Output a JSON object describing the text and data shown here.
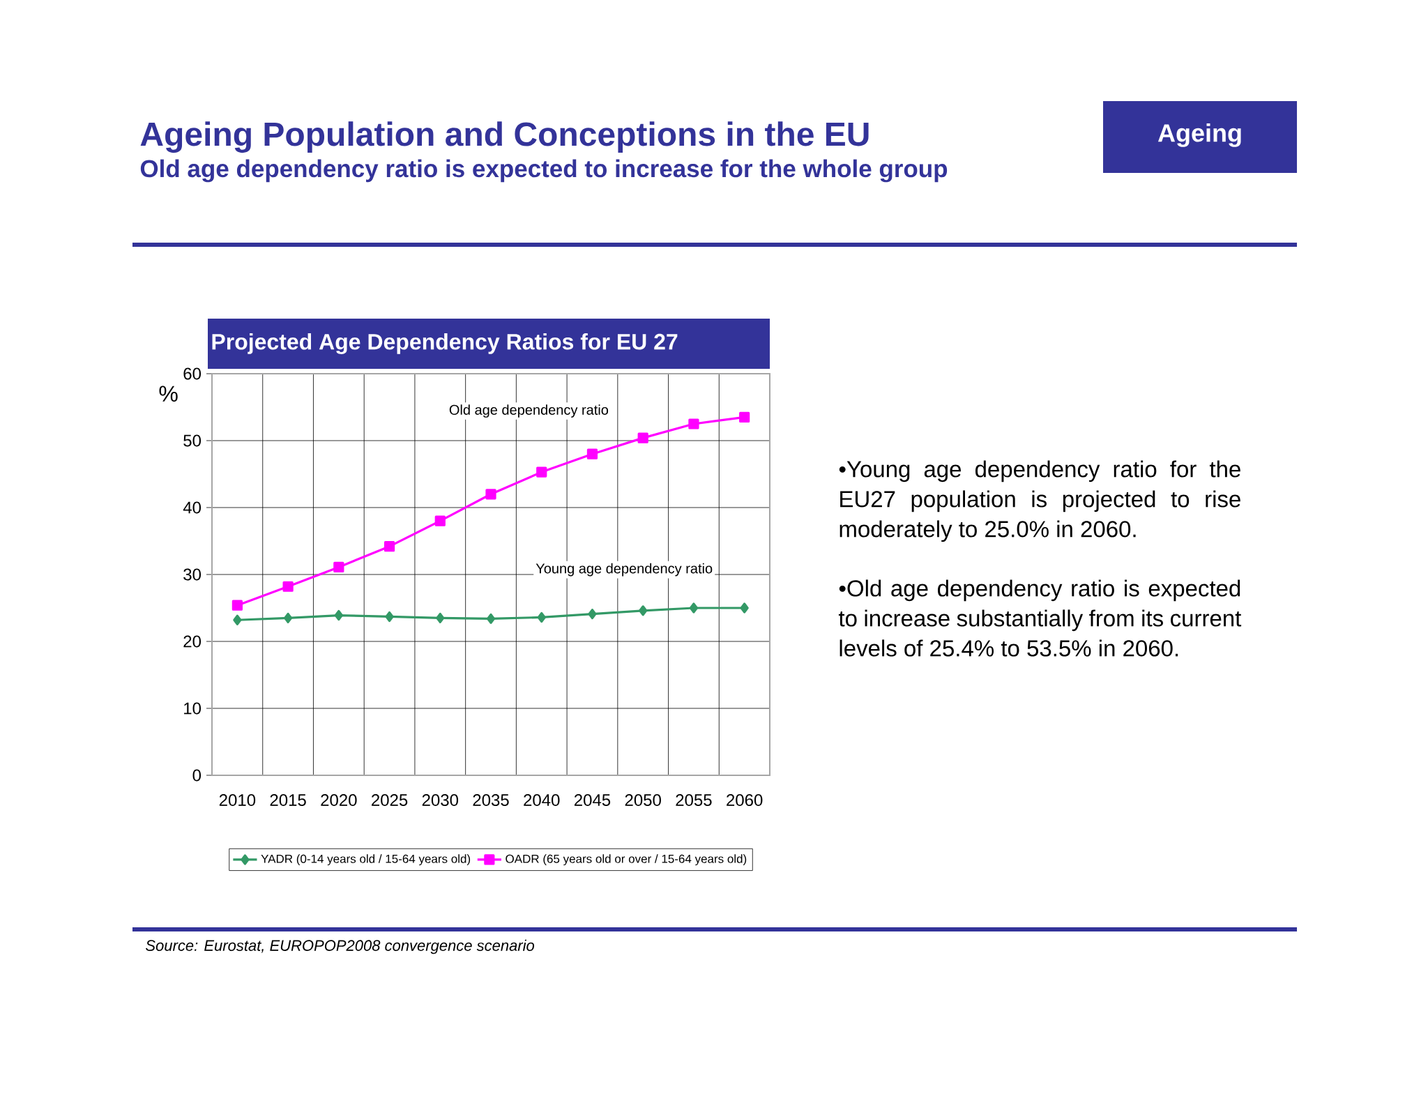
{
  "chart_data": {
    "type": "line",
    "title": "Ageing Population and Conceptions in the EU",
    "subtitle": "Old age dependency ratio is expected to increase for the whole group",
    "ylabel": "%",
    "categories": [
      "2010",
      "2015",
      "2020",
      "2025",
      "2030",
      "2035",
      "2040",
      "2045",
      "2050",
      "2055",
      "2060"
    ],
    "series": [
      {
        "name": "YADR (0-14 years old / 15-64 years old)",
        "color": "#339966",
        "marker": "diamond",
        "values": [
          23.2,
          23.5,
          23.9,
          23.7,
          23.5,
          23.4,
          23.6,
          24.1,
          24.6,
          25.0,
          25.0
        ]
      },
      {
        "name": "OADR (65 years old or over / 15-64 years old)",
        "color": "#ff00ff",
        "marker": "square",
        "values": [
          25.4,
          28.2,
          31.1,
          34.2,
          38.0,
          42.0,
          45.3,
          48.0,
          50.4,
          52.5,
          53.5
        ]
      }
    ],
    "ylim": [
      0,
      60
    ],
    "yticks": [
      0,
      10,
      20,
      30,
      40,
      50,
      60
    ],
    "grid": true,
    "legend": "bottom",
    "line_style": "solid",
    "annotations": [
      "Ageing",
      "Projected Age Dependency Ratios for EU 27",
      "Old age dependency ratio",
      "Young age dependency ratio",
      "•Young age dependency ratio for the EU27 population is projected to rise moderately to 25.0% in 2060.",
      "•Old age dependency ratio is expected to increase substantially from its current levels of 25.4% to 53.5% in 2060.",
      "Source: Eurostat, EUROPOP2008 convergence scenario"
    ]
  }
}
